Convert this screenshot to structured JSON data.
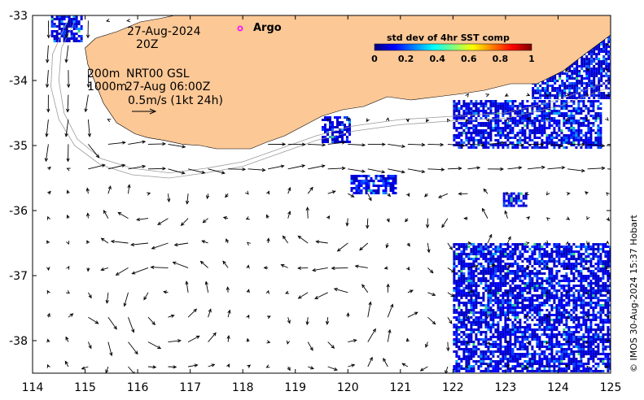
{
  "map": {
    "date": "27-Aug-2024",
    "time": "20Z",
    "depth_line_1": "200m",
    "depth_line_2": "1000m",
    "product": "NRT00 GSL",
    "product_time": "27-Aug 06:00Z",
    "vector_scale": "0.5m/s (1kt 24h)",
    "argo_label": "Argo",
    "credit": "© IMOS 30-Aug-2024 15:37 Hobart",
    "colors": {
      "land": "#fcc896",
      "ocean": "#ffffff",
      "argo_marker": "#ff00ff",
      "isobath": "#9a9a9a"
    }
  },
  "colorbar": {
    "title": "std dev of 4hr SST comp",
    "ticks": [
      "0",
      "0.2",
      "0.4",
      "0.6",
      "0.8",
      "1"
    ],
    "colormap": [
      "#00007f",
      "#0000ff",
      "#007fff",
      "#00ffff",
      "#7fff7f",
      "#ffff00",
      "#ff7f00",
      "#ff0000",
      "#7f0000"
    ]
  },
  "chart_data": {
    "type": "map",
    "xlabel": "",
    "ylabel": "",
    "xlim": [
      114,
      125
    ],
    "ylim": [
      -38.5,
      -33
    ],
    "x_ticks": [
      114,
      115,
      116,
      117,
      118,
      119,
      120,
      121,
      122,
      123,
      124,
      125
    ],
    "y_ticks": [
      -33,
      -34,
      -35,
      -36,
      -37,
      -38
    ],
    "x_tick_labels": [
      "114",
      "115",
      "116",
      "117",
      "118",
      "119",
      "120",
      "121",
      "122",
      "123",
      "124",
      "125"
    ],
    "y_tick_labels": [
      "-33",
      "-34",
      "-35",
      "-36",
      "-37",
      "-38"
    ],
    "argo_floats": [
      {
        "lon": 117.95,
        "lat": -33.2
      }
    ],
    "coastline": [
      [
        116.7,
        -33
      ],
      [
        125,
        -33
      ],
      [
        125,
        -33.3
      ],
      [
        124.5,
        -33.6
      ],
      [
        124.1,
        -33.85
      ],
      [
        123.6,
        -34.05
      ],
      [
        123.1,
        -34.05
      ],
      [
        122.6,
        -34.15
      ],
      [
        122.2,
        -34.2
      ],
      [
        121.7,
        -34.25
      ],
      [
        121.2,
        -34.3
      ],
      [
        120.75,
        -34.25
      ],
      [
        120.3,
        -34.4
      ],
      [
        119.9,
        -34.45
      ],
      [
        119.5,
        -34.55
      ],
      [
        119.15,
        -34.7
      ],
      [
        118.8,
        -34.85
      ],
      [
        118.45,
        -34.95
      ],
      [
        118.15,
        -35.05
      ],
      [
        117.8,
        -35.05
      ],
      [
        117.5,
        -35.05
      ],
      [
        117.2,
        -35.0
      ],
      [
        116.85,
        -34.98
      ],
      [
        116.5,
        -34.92
      ],
      [
        116.2,
        -34.88
      ],
      [
        115.95,
        -34.82
      ],
      [
        115.6,
        -34.65
      ],
      [
        115.35,
        -34.35
      ],
      [
        115.2,
        -34.05
      ],
      [
        115.05,
        -33.75
      ],
      [
        115.0,
        -33.5
      ],
      [
        115.2,
        -33.35
      ],
      [
        115.6,
        -33.25
      ],
      [
        116.05,
        -33.1
      ],
      [
        116.4,
        -33.05
      ]
    ],
    "sst_patches": [
      {
        "region": "northwest",
        "lon": [
          114.35,
          114.95
        ],
        "lat": [
          -33.4,
          -33.0
        ]
      },
      {
        "region": "south_of_albany",
        "lon": [
          119.5,
          120.05
        ],
        "lat": [
          -34.95,
          -34.55
        ]
      },
      {
        "region": "central",
        "lon": [
          120.05,
          120.9
        ],
        "lat": [
          -35.75,
          -35.45
        ]
      },
      {
        "region": "east_shelf",
        "lon": [
          122.0,
          124.8
        ],
        "lat": [
          -35.05,
          -34.3
        ]
      },
      {
        "region": "northeast_shelf",
        "lon": [
          123.5,
          125.0
        ],
        "lat": [
          -34.25,
          -33.05
        ]
      },
      {
        "region": "small_east",
        "lon": [
          122.95,
          123.4
        ],
        "lat": [
          -35.92,
          -35.72
        ]
      },
      {
        "region": "southeast",
        "lon": [
          122.0,
          125.0
        ],
        "lat": [
          -38.45,
          -36.5
        ]
      }
    ]
  }
}
